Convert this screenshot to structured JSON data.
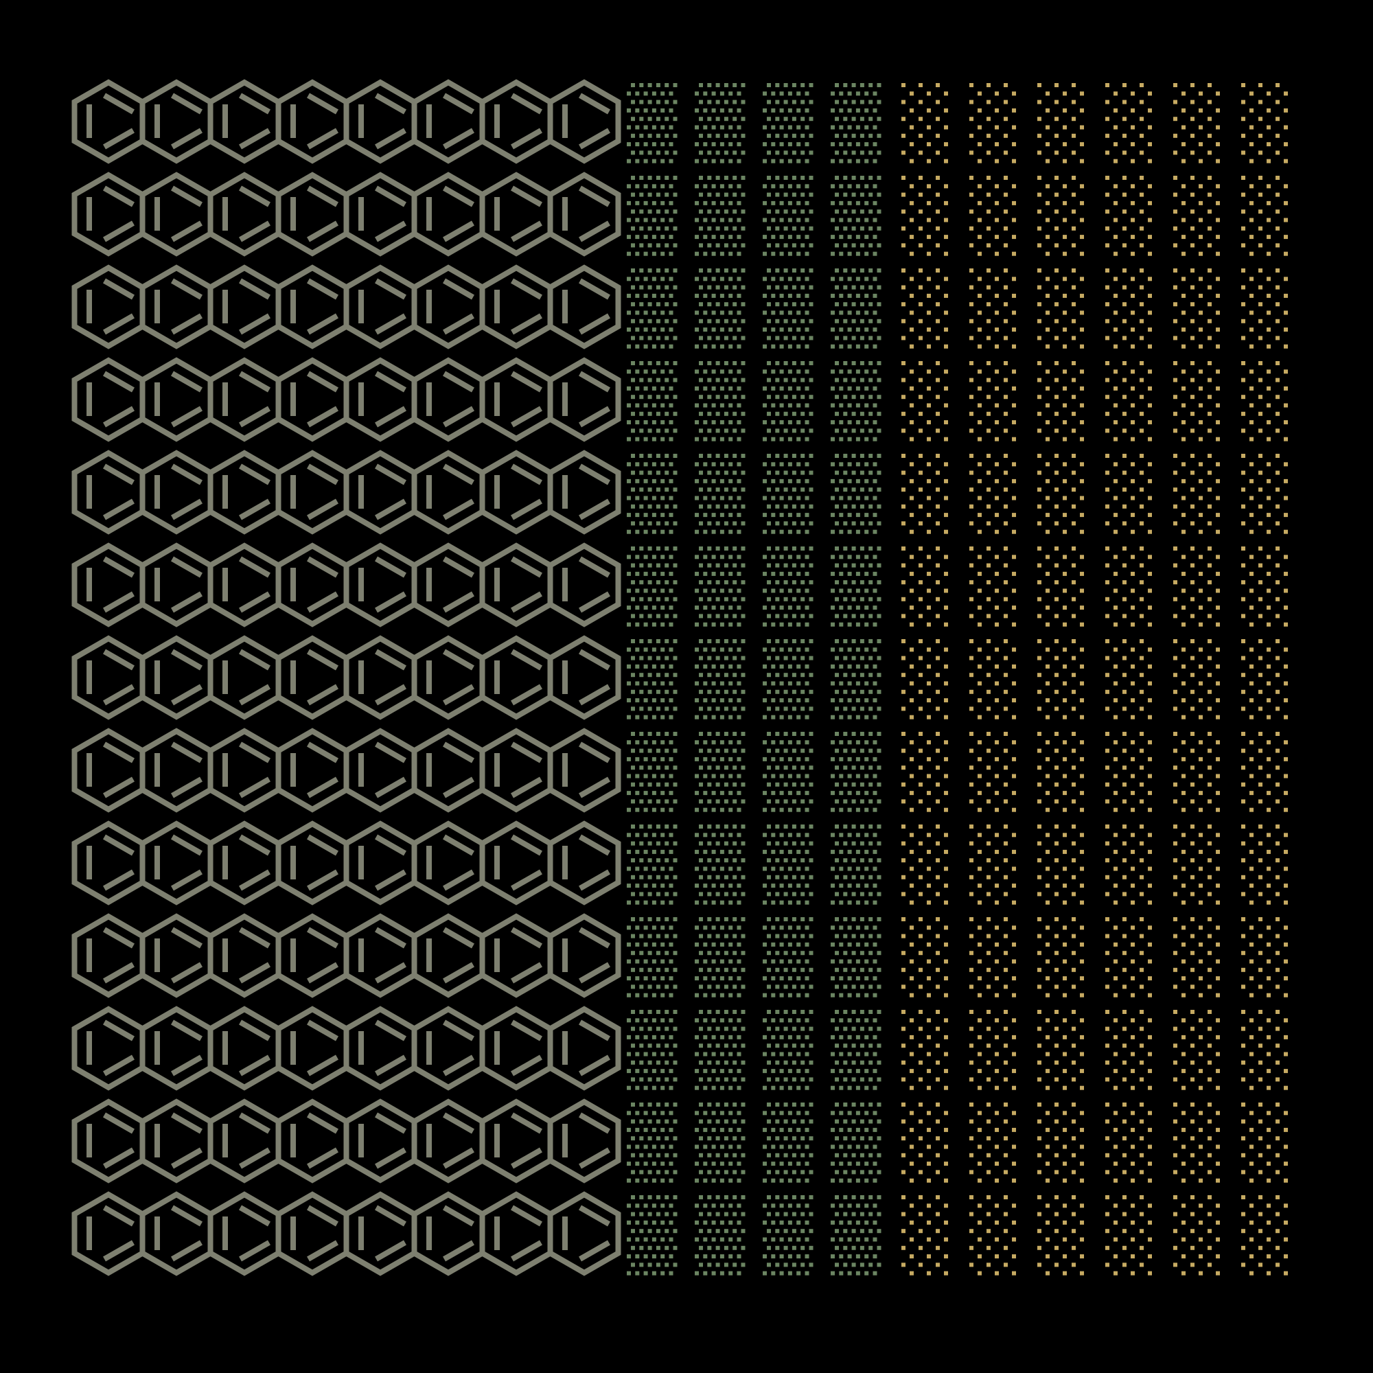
{
  "pattern": {
    "background": "#000000",
    "rows": 13,
    "hexagon_columns": 8,
    "green_dot_columns": 4,
    "gold_dot_columns": 6,
    "hexagon_icon": "benzene-ring-icon",
    "colors": {
      "hexagon": "#7e8070",
      "green_dots": "#6b8562",
      "gold_dots": "#c6aa62"
    }
  }
}
